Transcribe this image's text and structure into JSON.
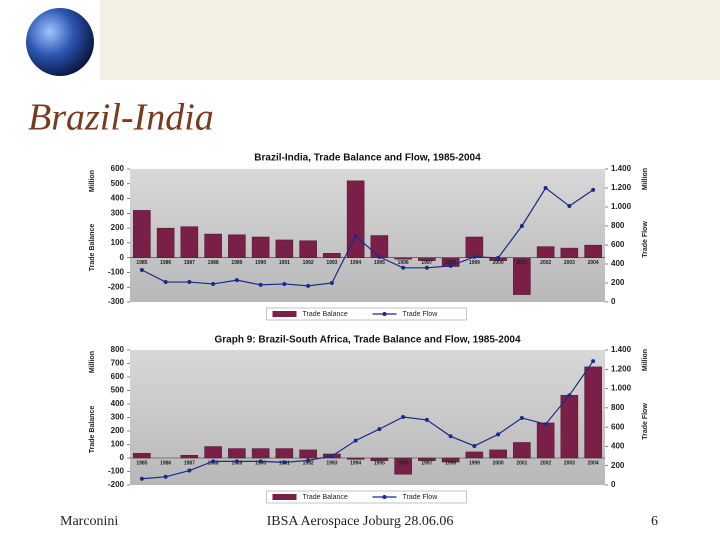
{
  "slide": {
    "title": "Brazil-India",
    "footer_left": "Marconini",
    "footer_center": "IBSA Aerospace Joburg 28.06.06",
    "footer_right": "6"
  },
  "chart_data": [
    {
      "type": "bar",
      "title": "Brazil-India, Trade Balance and Flow, 1985-2004",
      "ylabel": "Trade Balance",
      "yunit": "Million",
      "y2label": "Trade Flow",
      "y2unit": "Million",
      "categories": [
        "1985",
        "1986",
        "1987",
        "1988",
        "1989",
        "1990",
        "1991",
        "1992",
        "1993",
        "1994",
        "1995",
        "1996",
        "1997",
        "1998",
        "1999",
        "2000",
        "2001",
        "2002",
        "2003",
        "2004"
      ],
      "series": [
        {
          "name": "Trade Balance",
          "type": "bar",
          "color": "#7a2048",
          "values": [
            320,
            200,
            210,
            160,
            155,
            140,
            120,
            115,
            30,
            520,
            150,
            -10,
            -20,
            -60,
            140,
            -20,
            -250,
            75,
            65,
            85
          ]
        },
        {
          "name": "Trade Flow",
          "type": "line",
          "axis": "y2",
          "color": "#1a2a8a",
          "values": [
            337,
            210,
            210,
            190,
            230,
            180,
            190,
            170,
            200,
            695,
            475,
            360,
            360,
            380,
            475,
            465,
            800,
            1200,
            1010,
            1180
          ]
        }
      ],
      "ylim": [
        -300,
        600
      ],
      "yticks": [
        600,
        500,
        400,
        300,
        200,
        100,
        0,
        -100,
        -200,
        -300
      ],
      "y2lim": [
        0,
        1400
      ],
      "y2ticks": [
        {
          "value": 1400,
          "label": "1.400"
        },
        {
          "value": 1200,
          "label": "1.200"
        },
        {
          "value": 1000,
          "label": "1.000"
        },
        800,
        600,
        400,
        200,
        0
      ],
      "legend": "bottom"
    },
    {
      "type": "bar",
      "title": "Graph 9: Brazil-South Africa, Trade Balance and Flow, 1985-2004",
      "ylabel": "Trade Balance",
      "yunit": "Million",
      "y2label": "Trade Flow",
      "y2unit": "Million",
      "categories": [
        "1985",
        "1986",
        "1987",
        "1988",
        "1989",
        "1990",
        "1991",
        "1992",
        "1993",
        "1994",
        "1995",
        "1996",
        "1997",
        "1998",
        "1999",
        "2000",
        "2001",
        "2002",
        "2003",
        "2004"
      ],
      "series": [
        {
          "name": "Trade Balance",
          "type": "bar",
          "color": "#7a2048",
          "values": [
            35,
            0,
            20,
            85,
            70,
            70,
            70,
            60,
            30,
            -10,
            -20,
            -120,
            -20,
            -30,
            45,
            60,
            115,
            260,
            465,
            675
          ]
        },
        {
          "name": "Trade Flow",
          "type": "line",
          "axis": "y2",
          "color": "#1a2a8a",
          "values": [
            65,
            85,
            150,
            245,
            245,
            245,
            235,
            255,
            300,
            460,
            580,
            705,
            675,
            505,
            405,
            525,
            695,
            630,
            930,
            1285
          ]
        }
      ],
      "ylim": [
        -200,
        800
      ],
      "yticks": [
        800,
        700,
        600,
        500,
        400,
        300,
        200,
        100,
        0,
        -100,
        -200
      ],
      "y2lim": [
        0,
        1400
      ],
      "y2ticks": [
        {
          "value": 1400,
          "label": "1.400"
        },
        {
          "value": 1200,
          "label": "1.200"
        },
        {
          "value": 1000,
          "label": "1.000"
        },
        800,
        600,
        400,
        200,
        0
      ],
      "legend": "bottom"
    }
  ]
}
